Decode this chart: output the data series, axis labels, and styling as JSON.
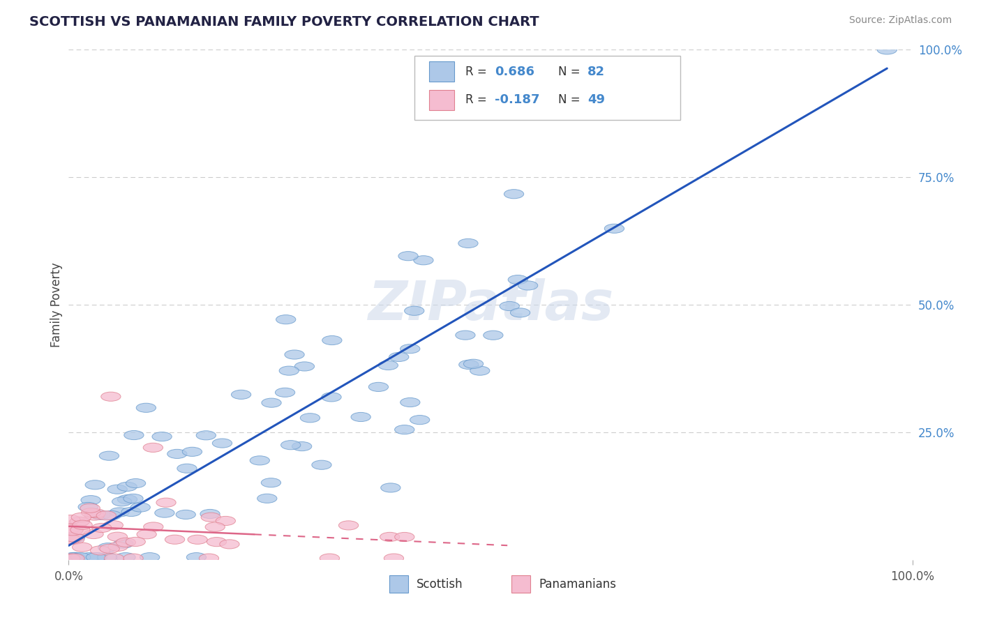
{
  "title": "SCOTTISH VS PANAMANIAN FAMILY POVERTY CORRELATION CHART",
  "source": "Source: ZipAtlas.com",
  "ylabel": "Family Poverty",
  "xlim": [
    0,
    1.0
  ],
  "ylim": [
    0,
    1.0
  ],
  "ytick_positions": [
    0.25,
    0.5,
    0.75,
    1.0
  ],
  "ytick_labels": [
    "25.0%",
    "50.0%",
    "75.0%",
    "100.0%"
  ],
  "legend_r1": "R = 0.686",
  "legend_n1": "N = 82",
  "legend_r2": "R = -0.187",
  "legend_n2": "N = 49",
  "scottish_color": "#adc8e8",
  "scottish_edge": "#6699cc",
  "panamanian_color": "#f5bcd0",
  "panamanian_edge": "#e08090",
  "line_scottish_color": "#2255bb",
  "line_panamanian_color": "#dd6688",
  "background_color": "#ffffff",
  "watermark": "ZIPatlas",
  "grid_color": "#cccccc",
  "title_color": "#222244",
  "source_color": "#888888",
  "raxis_color": "#4488cc"
}
